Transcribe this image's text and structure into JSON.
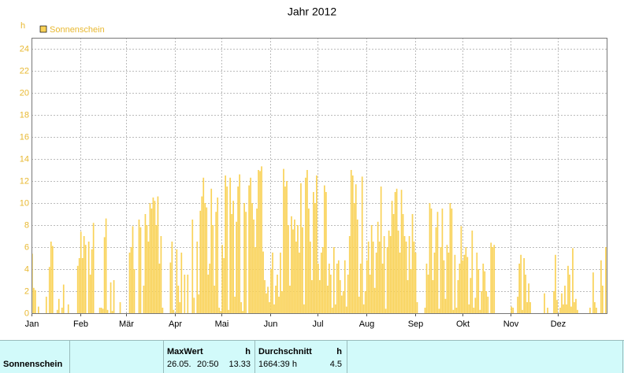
{
  "chart_data": {
    "type": "bar",
    "title": "Jahr 2012",
    "y_unit": "h",
    "legend_position": "top-left",
    "grid": true,
    "series": [
      {
        "name": "Sonnenschein",
        "color": "#f9d257",
        "values": [
          5.4,
          2.3,
          2.1,
          0,
          0.6,
          0,
          0,
          0,
          0,
          1.5,
          0,
          4.2,
          6.5,
          6.1,
          0,
          0,
          0.3,
          1.3,
          0,
          0.5,
          2.6,
          0,
          0,
          0.8,
          0,
          0,
          0,
          0,
          0,
          4.3,
          5.0,
          7.4,
          5.0,
          7.0,
          6.2,
          0,
          6.5,
          3.5,
          5.8,
          8.2,
          0,
          0,
          0,
          0.5,
          0.5,
          0.4,
          6.9,
          8.6,
          0.3,
          0,
          2.8,
          0.2,
          3.0,
          0,
          0,
          0,
          1.0,
          0,
          0,
          0,
          0,
          0,
          5.5,
          6.0,
          7.9,
          4.0,
          0,
          0,
          8.5,
          7.8,
          0,
          2.5,
          9.0,
          8.0,
          6.5,
          10.0,
          9.5,
          10.5,
          10.2,
          8.0,
          10.6,
          4.5,
          7.0,
          0.5,
          0,
          0,
          0,
          0,
          4.6,
          6.5,
          0.3,
          0,
          5.8,
          2.5,
          1.0,
          5.5,
          0,
          3.5,
          0,
          3.5,
          0,
          0,
          8.5,
          1.4,
          0,
          6.5,
          1.7,
          9.3,
          10.6,
          12.3,
          10.0,
          9.6,
          3.5,
          4.5,
          11.3,
          8.0,
          2.5,
          9.2,
          10.5,
          0.5,
          0.2,
          6.2,
          5.0,
          12.5,
          11.5,
          0.3,
          12.3,
          9.0,
          10.2,
          1.5,
          8.3,
          11.5,
          12.6,
          1.0,
          0.2,
          10.0,
          9.2,
          0,
          11.6,
          12.3,
          10.0,
          8.5,
          6.0,
          9.5,
          13.0,
          12.9,
          13.33,
          5.6,
          3.0,
          1.8,
          2.4,
          1.0,
          4.0,
          5.5,
          0.8,
          2.5,
          3.5,
          1.5,
          5.5,
          2.0,
          13.1,
          11.5,
          12.0,
          8.0,
          2.5,
          8.8,
          7.6,
          8.5,
          6.5,
          8.0,
          5.5,
          11.8,
          7.8,
          0.8,
          12.3,
          13.0,
          9.5,
          6.5,
          3.0,
          11.0,
          10.0,
          12.5,
          4.5,
          3.0,
          5.5,
          6.0,
          11.6,
          11.0,
          2.5,
          4.5,
          3.5,
          0.5,
          6.0,
          0.8,
          4.5,
          4.8,
          3.0,
          1.6,
          2.0,
          4.8,
          0.6,
          3.5,
          7.0,
          13.0,
          12.5,
          10.0,
          11.7,
          8.5,
          1.5,
          4.5,
          12.4,
          0.8,
          2.0,
          4.8,
          6.5,
          3.5,
          8.0,
          6.5,
          2.3,
          5.5,
          8.3,
          6.5,
          11.5,
          4.5,
          7.0,
          0.4,
          6.0,
          7.5,
          7.0,
          10.2,
          9.0,
          11.0,
          11.3,
          7.5,
          5.5,
          11.2,
          9.0,
          7.0,
          6.5,
          3.0,
          7.0,
          4.0,
          9.0,
          6.5,
          5.5,
          1.0,
          0,
          0,
          0,
          0,
          0.5,
          4.5,
          3.5,
          10.0,
          9.5,
          3.0,
          5.5,
          7.8,
          9.2,
          0.4,
          6.0,
          9.5,
          4.8,
          1.3,
          6.2,
          5.5,
          10.0,
          9.5,
          0.3,
          5.3,
          0.5,
          3.0,
          4.5,
          7.9,
          4.8,
          5.3,
          6.0,
          5.1,
          0.8,
          3.2,
          7.5,
          0.5,
          1.4,
          5.5,
          4.0,
          0.3,
          2.0,
          4.5,
          3.8,
          2.0,
          1.5,
          0,
          6.4,
          6.0,
          6.2,
          0,
          0,
          0,
          0,
          0,
          0,
          0,
          0,
          0,
          0,
          0.6,
          0.5,
          0,
          0,
          1.5,
          4.5,
          5.3,
          0.3,
          5.0,
          3.5,
          1.0,
          2.7,
          1.0,
          0,
          0,
          0,
          0,
          0,
          0,
          0,
          0,
          1.8,
          0,
          0.5,
          0,
          0,
          0,
          2.0,
          5.3,
          1.2,
          0,
          0.5,
          1.8,
          0.8,
          2.5,
          0.8,
          4.3,
          3.5,
          0.6,
          5.9,
          1.0,
          1.3,
          0.3,
          0,
          0,
          0,
          0,
          0,
          0,
          0,
          0.5,
          0,
          3.7,
          1.0,
          0.5,
          0,
          0,
          4.8,
          2.5,
          0,
          6.0
        ]
      }
    ],
    "xlim": [
      0,
      366
    ],
    "xticks": [
      {
        "value": 0,
        "label": "Jan"
      },
      {
        "value": 31,
        "label": "Feb"
      },
      {
        "value": 60,
        "label": "Mär"
      },
      {
        "value": 91,
        "label": "Apr"
      },
      {
        "value": 121,
        "label": "Mai"
      },
      {
        "value": 152,
        "label": "Jun"
      },
      {
        "value": 182,
        "label": "Jul"
      },
      {
        "value": 213,
        "label": "Aug"
      },
      {
        "value": 244,
        "label": "Sep"
      },
      {
        "value": 274,
        "label": "Okt"
      },
      {
        "value": 305,
        "label": "Nov"
      },
      {
        "value": 335,
        "label": "Dez"
      }
    ],
    "ylim": [
      0,
      25
    ],
    "yticks": [
      0,
      2,
      4,
      6,
      8,
      10,
      12,
      14,
      16,
      18,
      20,
      22,
      24
    ]
  },
  "stats": {
    "name": "Sonnenschein",
    "max_header": "MaxWert",
    "max_unit": "h",
    "max_date": "26.05.",
    "max_time": "20:50",
    "max_value": "13.33",
    "avg_header": "Durchschnitt",
    "avg_unit": "h",
    "total": "1664:39 h",
    "avg_value": "4.5"
  }
}
